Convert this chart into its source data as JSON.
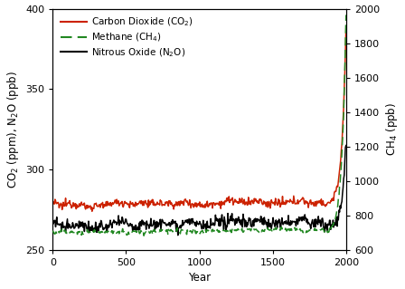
{
  "xlabel": "Year",
  "ylabel_left": "CO$_2$ (ppm), N$_2$O (ppb)",
  "ylabel_right": "CH$_4$ (ppb)",
  "xlim": [
    0,
    2000
  ],
  "ylim_left": [
    250,
    400
  ],
  "ylim_right": [
    600,
    2000
  ],
  "xticks": [
    0,
    500,
    1000,
    1500,
    2000
  ],
  "yticks_left": [
    250,
    300,
    350,
    400
  ],
  "yticks_right": [
    600,
    800,
    1000,
    1200,
    1400,
    1600,
    1800,
    2000
  ],
  "co2_color": "#cc2200",
  "ch4_color": "#228822",
  "n2o_color": "#000000",
  "co2_label": "Carbon Dioxide (CO$_2$)",
  "ch4_label": "Methane (CH$_4$)",
  "n2o_label": "Nitrous Oxide (N$_2$O)",
  "co2_baseline": 278,
  "co2_noise": 1.2,
  "co2_rise_start": 1850,
  "co2_end": 385,
  "ch4_baseline": 700,
  "ch4_noise": 6,
  "ch4_rise_start": 1850,
  "ch4_end": 1970,
  "n2o_baseline": 265,
  "n2o_noise": 1.8,
  "n2o_rise_start": 1880,
  "n2o_end": 316,
  "npts": 500,
  "legend_fontsize": 7.5,
  "tick_fontsize": 8,
  "label_fontsize": 8.5
}
